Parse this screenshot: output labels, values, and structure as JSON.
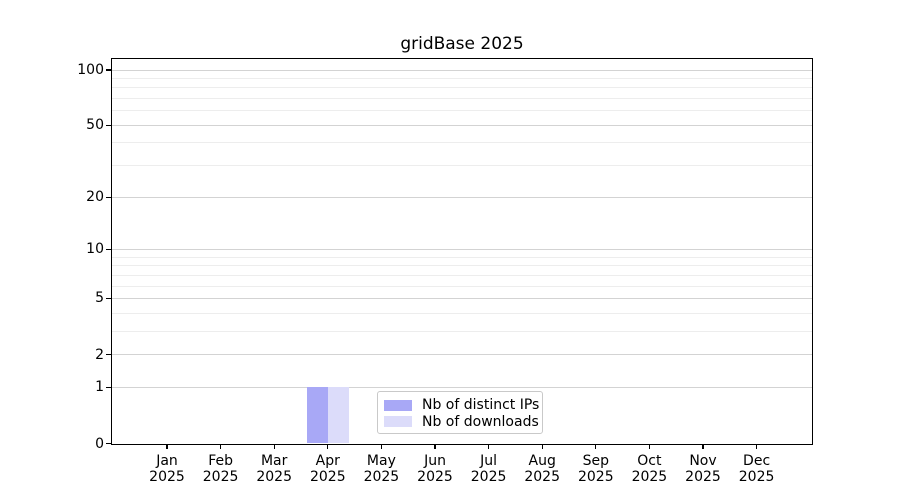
{
  "chart_data": {
    "type": "bar",
    "title": "gridBase 2025",
    "categories": [
      "Jan",
      "Feb",
      "Mar",
      "Apr",
      "May",
      "Jun",
      "Jul",
      "Aug",
      "Sep",
      "Oct",
      "Nov",
      "Dec"
    ],
    "x_tick_second_line": "2025",
    "series": [
      {
        "name": "Nb of distinct IPs",
        "color": "#a8a8f6",
        "values": [
          0,
          0,
          0,
          1,
          0,
          0,
          0,
          0,
          0,
          0,
          0,
          0
        ]
      },
      {
        "name": "Nb of downloads",
        "color": "#dcdcfa",
        "values": [
          0,
          0,
          0,
          1,
          0,
          0,
          0,
          0,
          0,
          0,
          0,
          0
        ]
      }
    ],
    "yscale": "log1p",
    "ylim": [
      0,
      100
    ],
    "ymax_axis_render": 114,
    "yticks_major": [
      0,
      1,
      2,
      5,
      10,
      20,
      50,
      100
    ],
    "yticks_minor": [
      3,
      4,
      6,
      7,
      8,
      9,
      30,
      40,
      60,
      70,
      80,
      90
    ],
    "grid": true,
    "legend_position": "inside-bottom-center",
    "colors": {
      "major_grid": "#d3d3d3",
      "minor_grid": "#ededed",
      "axis": "#000000",
      "legend_border": "#c9c9c9",
      "background": "#ffffff"
    }
  }
}
